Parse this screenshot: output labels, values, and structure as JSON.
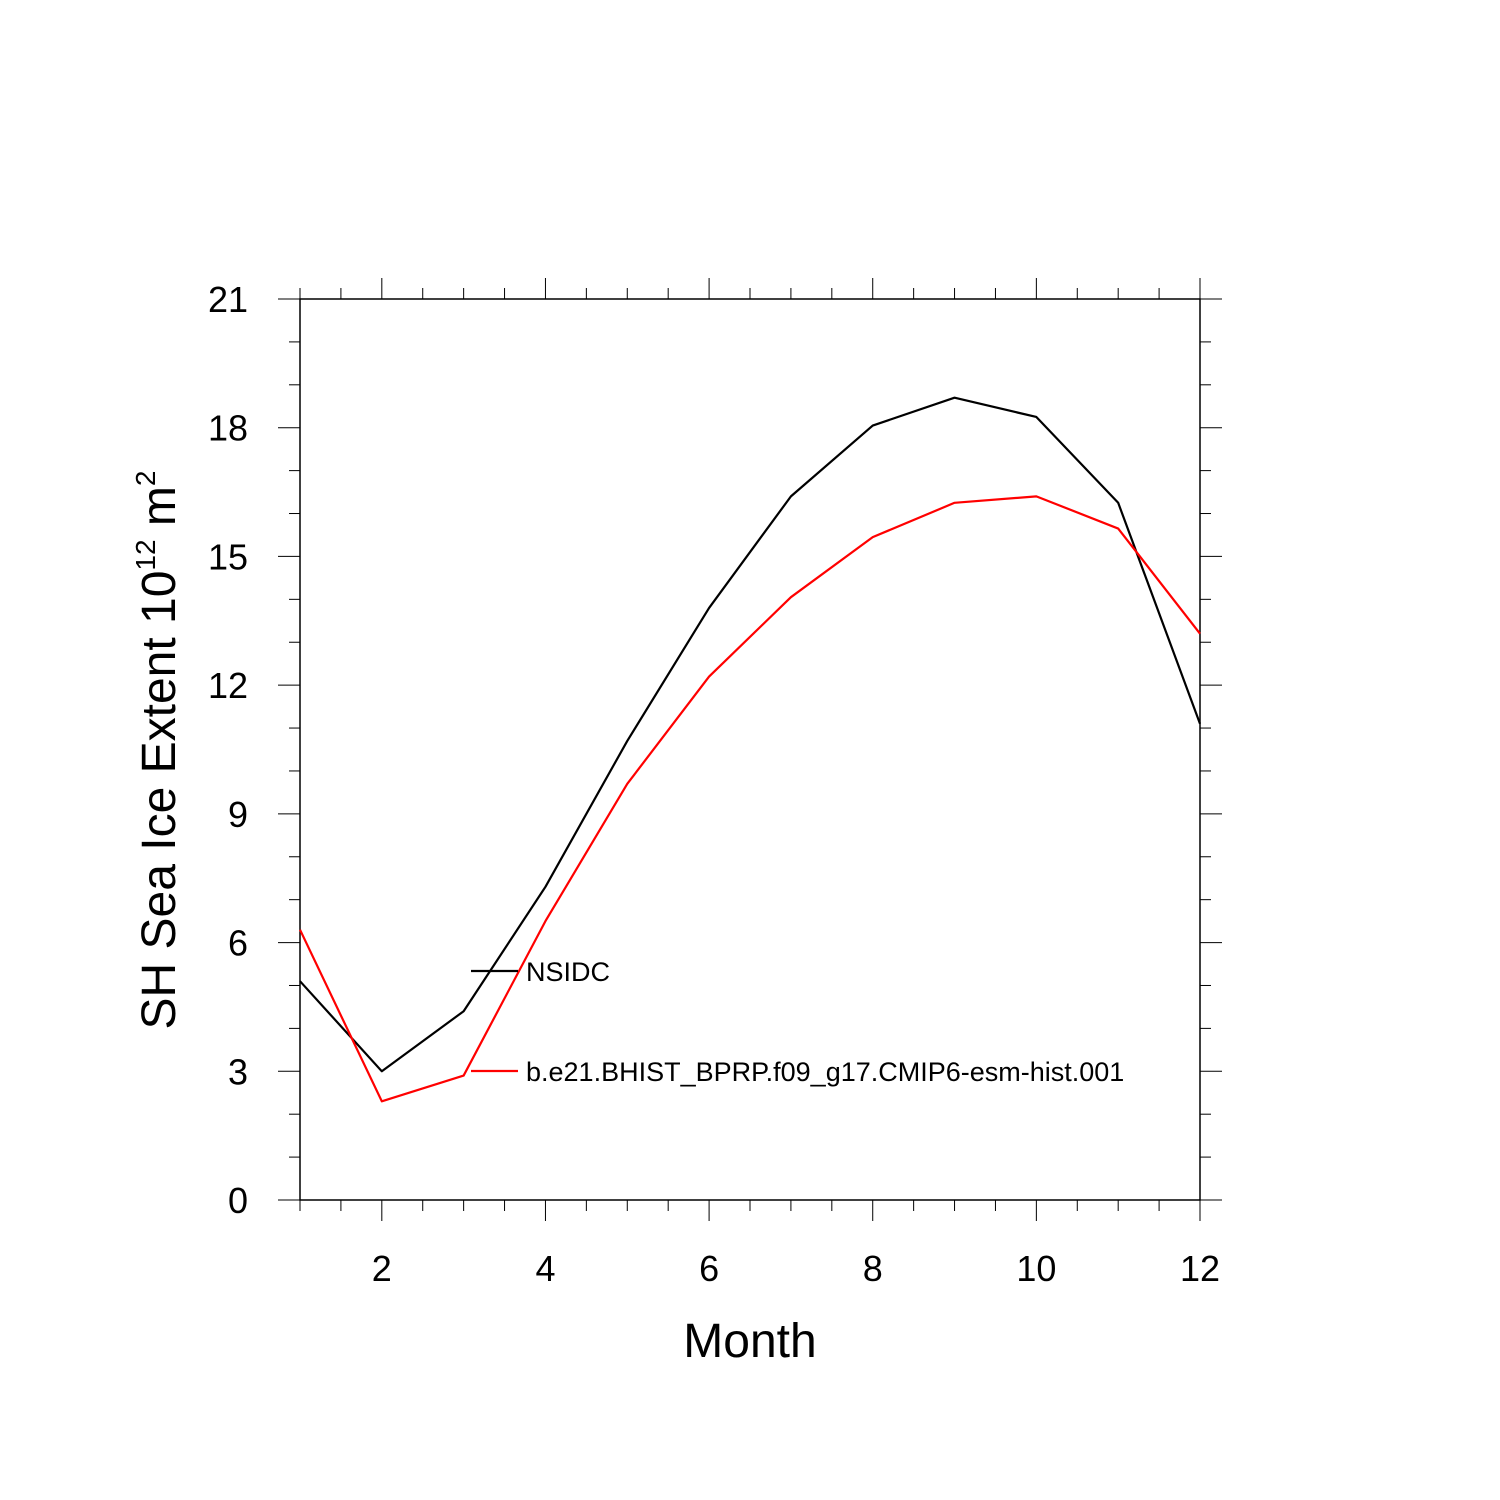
{
  "chart_data": {
    "type": "line",
    "xlabel": "Month",
    "ylabel": {
      "prefix": "SH Sea Ice Extent 10",
      "exp1": "12",
      "mid": " m",
      "exp2": "2"
    },
    "xlim": [
      1,
      12
    ],
    "ylim": [
      0,
      21
    ],
    "xticks": [
      2,
      4,
      6,
      8,
      10,
      12
    ],
    "yticks": [
      0,
      3,
      6,
      9,
      12,
      15,
      18,
      21
    ],
    "x": [
      1,
      2,
      3,
      4,
      5,
      6,
      7,
      8,
      9,
      10,
      11,
      12
    ],
    "series": [
      {
        "name": "NSIDC",
        "color": "#000000",
        "values": [
          5.1,
          3.0,
          4.4,
          7.3,
          10.7,
          13.8,
          16.4,
          18.05,
          18.7,
          18.25,
          16.25,
          11.1
        ]
      },
      {
        "name": "b.e21.BHIST_BPRP.f09_g17.CMIP6-esm-hist.001",
        "color": "#ff0000",
        "values": [
          6.3,
          2.3,
          2.9,
          6.5,
          9.7,
          12.2,
          14.05,
          15.45,
          16.25,
          16.4,
          15.65,
          13.2
        ]
      }
    ],
    "grid": false,
    "legend_placement": "inside-lower-left"
  }
}
